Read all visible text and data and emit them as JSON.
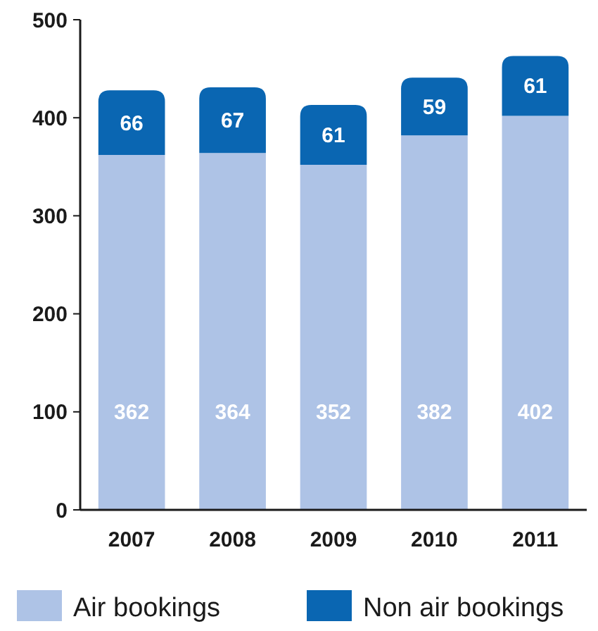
{
  "chart_data": {
    "type": "bar",
    "stacked": true,
    "categories": [
      "2007",
      "2008",
      "2009",
      "2010",
      "2011"
    ],
    "series": [
      {
        "name": "Air bookings",
        "color": "#aec3e6",
        "values": [
          362,
          364,
          352,
          382,
          402
        ]
      },
      {
        "name": "Non air bookings",
        "color": "#0a66b2",
        "values": [
          66,
          67,
          61,
          59,
          61
        ]
      }
    ],
    "ylim": [
      0,
      500
    ],
    "yticks": [
      0,
      100,
      200,
      300,
      400,
      500
    ],
    "data_labels": true,
    "grid": false,
    "legend": "bottom"
  }
}
